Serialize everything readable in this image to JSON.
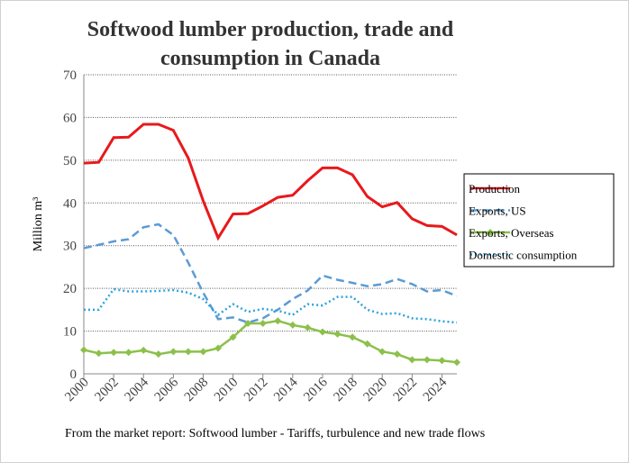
{
  "chart_data": {
    "type": "line",
    "title": [
      "Softwood lumber production, trade and",
      "consumption in Canada"
    ],
    "y_label": "Million m³",
    "note": "From the market report: Softwood lumber - Tariffs, turbulence and new trade flows",
    "x": [
      2000,
      2001,
      2002,
      2003,
      2004,
      2005,
      2006,
      2007,
      2008,
      2009,
      2010,
      2011,
      2012,
      2013,
      2014,
      2015,
      2016,
      2017,
      2018,
      2019,
      2020,
      2021,
      2022,
      2023,
      2024,
      2025
    ],
    "xlim": [
      2000,
      2025
    ],
    "xticks": [
      2000,
      2002,
      2004,
      2006,
      2008,
      2010,
      2012,
      2014,
      2016,
      2018,
      2020,
      2022,
      2024
    ],
    "ylim": [
      0,
      70
    ],
    "yticks": [
      0,
      10,
      20,
      30,
      40,
      50,
      60,
      70
    ],
    "grid": true,
    "legend": "right",
    "series": [
      {
        "name": "Production",
        "color": "#e8191c",
        "line_style": "solid",
        "values": [
          49.3,
          49.5,
          55.3,
          55.4,
          58.4,
          58.4,
          57,
          50.5,
          40.5,
          31.8,
          37.4,
          37.5,
          39.3,
          41.3,
          41.8,
          45.2,
          48.2,
          48.2,
          46.6,
          41.5,
          39.1,
          40.1,
          36.3,
          34.7,
          34.5,
          32.5
        ]
      },
      {
        "name": "Exports, US",
        "color": "#5b9bd5",
        "line_style": "dashed",
        "values": [
          29.4,
          30.2,
          31,
          31.5,
          34.3,
          35,
          32.5,
          26,
          19,
          12.8,
          13.2,
          12,
          13,
          15,
          17.5,
          19.5,
          23,
          22,
          21.3,
          20.5,
          21,
          22.2,
          21,
          19.3,
          19.6,
          18.2
        ]
      },
      {
        "name": "Exports, Overseas",
        "color": "#8cc04b",
        "line_style": "solid",
        "marker": "diamond",
        "values": [
          5.6,
          4.8,
          5,
          5,
          5.5,
          4.6,
          5.2,
          5.2,
          5.2,
          6,
          8.6,
          11.8,
          11.8,
          12.4,
          11.4,
          10.8,
          9.8,
          9.3,
          8.6,
          7,
          5.2,
          4.6,
          3.3,
          3.3,
          3.1,
          2.7
        ]
      },
      {
        "name": "Domestic consumption",
        "color": "#2ea3dc",
        "line_style": "dotted",
        "values": [
          15,
          15,
          19.8,
          19.3,
          19.3,
          19.4,
          19.6,
          19,
          17.5,
          13.8,
          16.3,
          14.5,
          15.2,
          14.8,
          13.8,
          16.3,
          16,
          18,
          18,
          15,
          14,
          14.2,
          13,
          12.8,
          12.3,
          12
        ]
      }
    ]
  }
}
